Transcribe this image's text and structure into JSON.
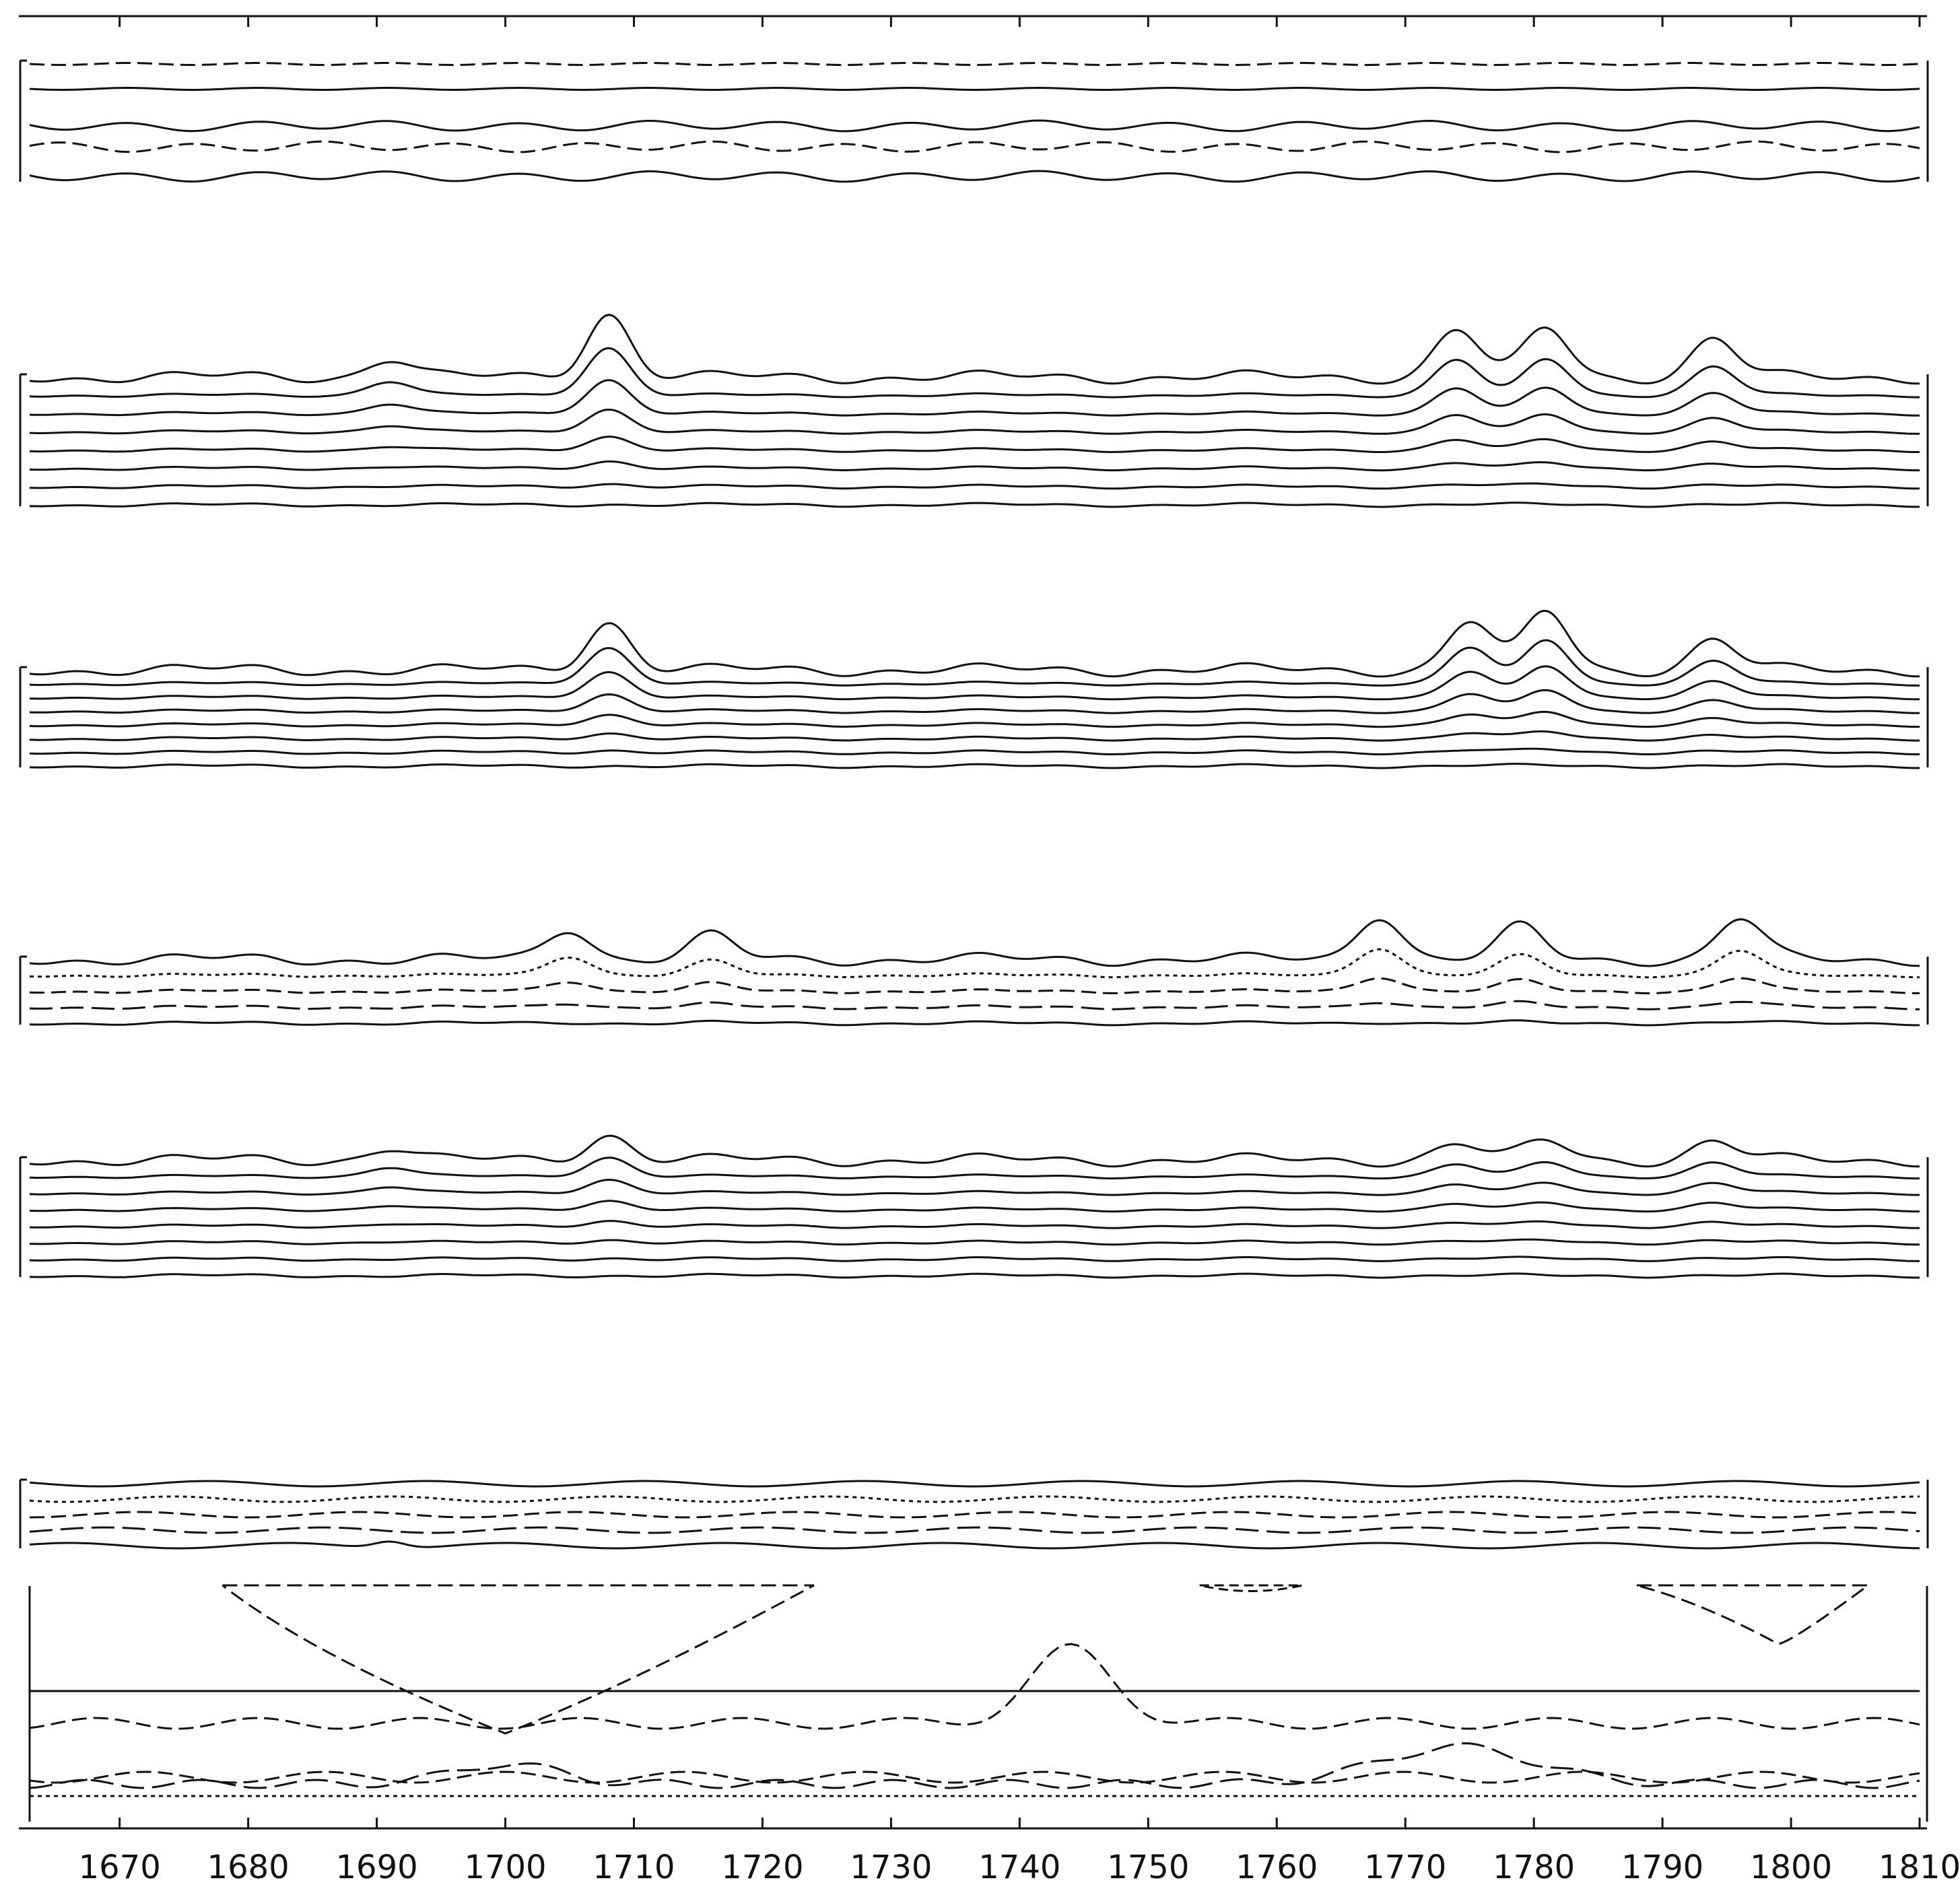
{
  "chart_data": {
    "type": "line",
    "xlim": [
      1663,
      1810
    ],
    "x_ticks": [
      1670,
      1680,
      1690,
      1700,
      1710,
      1720,
      1730,
      1740,
      1750,
      1760,
      1770,
      1780,
      1790,
      1800,
      1810
    ],
    "x_tick_labels": [
      "1670",
      "1680",
      "1690",
      "1700",
      "1710",
      "1720",
      "1730",
      "1740",
      "1750",
      "1760",
      "1770",
      "1780",
      "1790",
      "1800",
      "1810"
    ],
    "grid": false,
    "legend": "none",
    "peak_years": [
      1691,
      1708,
      1775,
      1781,
      1794
    ],
    "panels": [
      {
        "style": "top-strip",
        "series": [
          {
            "dash": "dashed",
            "profile": "flat"
          },
          {
            "dash": "solid",
            "profile": "flat"
          },
          {
            "dash": "solid",
            "profile": "wavy"
          },
          {
            "dash": "dashed",
            "profile": "wavy"
          },
          {
            "dash": "solid",
            "profile": "wavy"
          }
        ]
      },
      {
        "style": "stacked",
        "series_count": 8,
        "peaks": [
          [
            1691,
            0.3
          ],
          [
            1708,
            1.0
          ],
          [
            1774,
            0.75
          ],
          [
            1781,
            0.75
          ],
          [
            1794,
            0.6
          ]
        ]
      },
      {
        "style": "stacked",
        "series_count": 8,
        "peaks": [
          [
            1708,
            0.8
          ],
          [
            1775,
            0.8
          ],
          [
            1781,
            0.95
          ],
          [
            1794,
            0.5
          ]
        ]
      },
      {
        "style": "stacked-dashed",
        "series_count": 5,
        "peaks": [
          [
            1705,
            0.55
          ],
          [
            1716,
            0.4
          ],
          [
            1768,
            0.8
          ],
          [
            1779,
            0.55
          ],
          [
            1796,
            0.7
          ]
        ]
      },
      {
        "style": "stacked",
        "series_count": 8,
        "peaks": [
          [
            1691,
            0.35
          ],
          [
            1708,
            0.7
          ],
          [
            1774,
            0.45
          ],
          [
            1781,
            0.5
          ],
          [
            1794,
            0.5
          ]
        ]
      },
      {
        "style": "flat-dashed",
        "series_count": 5
      },
      {
        "style": "bottom-panel",
        "series_count": 6
      }
    ]
  }
}
